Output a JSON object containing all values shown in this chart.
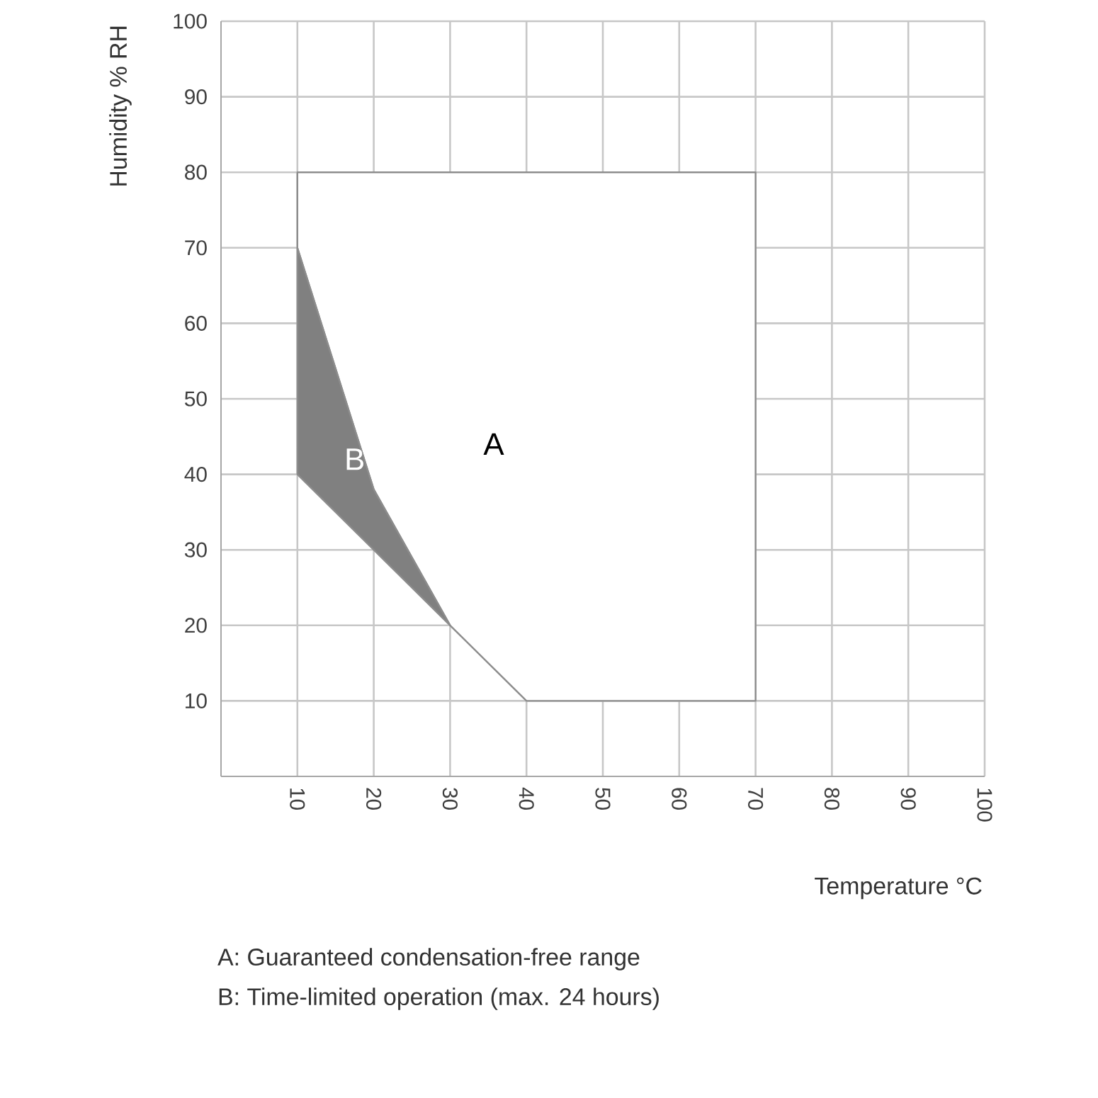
{
  "chart_data": {
    "type": "area",
    "xlabel": "Temperature °C",
    "ylabel": "Humidity % RH",
    "xlim": [
      0,
      100
    ],
    "ylim": [
      0,
      100
    ],
    "xticks": [
      10,
      20,
      30,
      40,
      50,
      60,
      70,
      80,
      90,
      100
    ],
    "yticks": [
      10,
      20,
      30,
      40,
      50,
      60,
      70,
      80,
      90,
      100
    ],
    "grid": true,
    "series": [
      {
        "color": "#ffffff",
        "x": [
          10,
          70,
          70,
          40,
          30,
          20,
          10
        ],
        "values": [
          80,
          80,
          10,
          10,
          20,
          38,
          70
        ]
      },
      {
        "color": "#808080",
        "x": [
          10,
          20,
          30,
          10
        ],
        "values": [
          70,
          38,
          20,
          40
        ]
      }
    ],
    "annotations": [
      "A",
      "B",
      "A: Guaranteed condensation-free range",
      "B: Time-limited operation (max. 24 hours)"
    ]
  }
}
